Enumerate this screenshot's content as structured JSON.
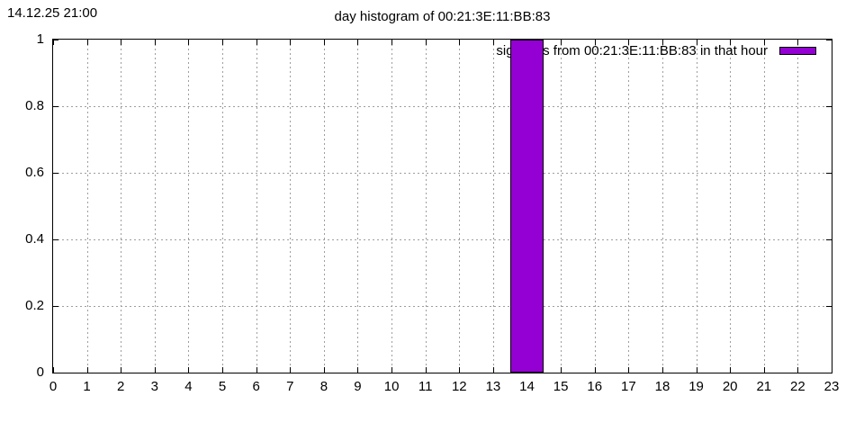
{
  "page": {
    "timestamp": "14.12.25 21:00",
    "title": "day histogram of 00:21:3E:11:BB:83"
  },
  "legend": {
    "label": "sightings from 00:21:3E:11:BB:83 in that hour",
    "swatch_color": "#9400d3"
  },
  "chart_data": {
    "type": "bar",
    "title": "day histogram of 00:21:3E:11:BB:83",
    "xlabel": "",
    "ylabel": "",
    "xlim": [
      0,
      23
    ],
    "ylim": [
      0,
      1
    ],
    "xticks": [
      0,
      1,
      2,
      3,
      4,
      5,
      6,
      7,
      8,
      9,
      10,
      11,
      12,
      13,
      14,
      15,
      16,
      17,
      18,
      19,
      20,
      21,
      22,
      23
    ],
    "yticks": [
      0,
      0.2,
      0.4,
      0.6,
      0.8,
      1
    ],
    "ytick_labels": [
      "0",
      "0.2",
      "0.4",
      "0.6",
      "0.8",
      "1"
    ],
    "grid": true,
    "grid_color": "#9e9e9e",
    "bar_width": 1,
    "bar_color": "#9400d3",
    "bar_border_color": "#000000",
    "legend_position": "top-right",
    "series": [
      {
        "name": "sightings from 00:21:3E:11:BB:83 in that hour",
        "x": [
          0,
          1,
          2,
          3,
          4,
          5,
          6,
          7,
          8,
          9,
          10,
          11,
          12,
          13,
          14,
          15,
          16,
          17,
          18,
          19,
          20,
          21,
          22,
          23
        ],
        "values": [
          0,
          0,
          0,
          0,
          0,
          0,
          0,
          0,
          0,
          0,
          0,
          0,
          0,
          0,
          1,
          0,
          0,
          0,
          0,
          0,
          0,
          0,
          0,
          0
        ]
      }
    ]
  }
}
